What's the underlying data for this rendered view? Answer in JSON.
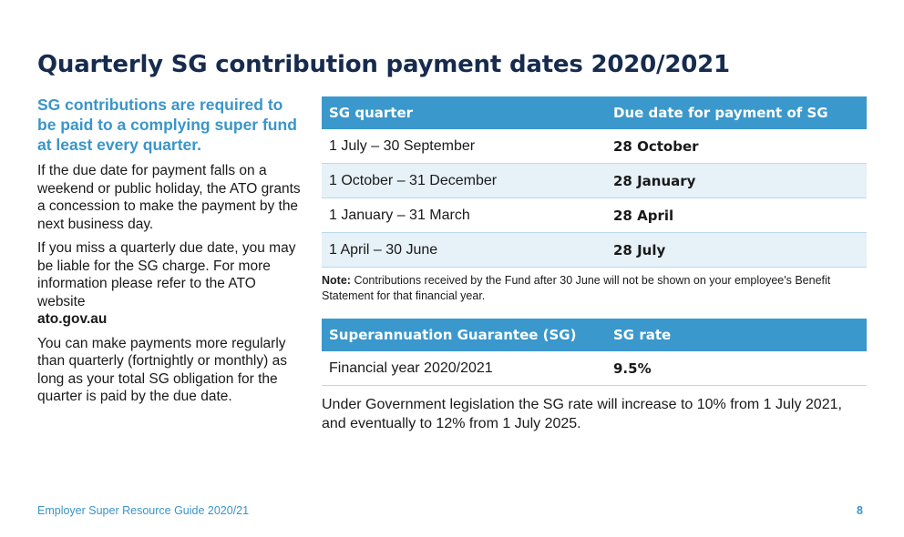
{
  "title": "Quarterly SG contribution payment dates 2020/2021",
  "left": {
    "lead": "SG contributions are required to be paid to a complying super fund at least every quarter.",
    "para1": "If the due date for payment falls on a weekend or public holiday, the ATO grants a concession to make the payment by the next business day.",
    "para2": "If you miss a quarterly due date, you may be liable for the SG charge. For more information please refer to the ATO website",
    "para2_link": "ato.gov.au",
    "para3": "You can make payments more regularly than quarterly (fortnightly or monthly) as long as your total SG obligation for the quarter is paid by the due date."
  },
  "quarter_table": {
    "headers": [
      "SG quarter",
      "Due date for payment of SG"
    ],
    "rows": [
      [
        "1 July – 30 September",
        "28 October"
      ],
      [
        "1 October – 31 December",
        "28 January"
      ],
      [
        "1 January – 31 March",
        "28 April"
      ],
      [
        "1 April – 30 June",
        "28 July"
      ]
    ]
  },
  "note": {
    "label": "Note:",
    "text": "Contributions received by the Fund after 30 June will not be shown on your employee's Benefit Statement for that financial year."
  },
  "rate_table": {
    "headers": [
      "Superannuation Guarantee (SG)",
      "SG rate"
    ],
    "rows": [
      [
        "Financial year 2020/2021",
        "9.5%"
      ]
    ]
  },
  "legislation": "Under Government legislation the SG rate will increase to 10% from 1 July 2021, and eventually to 12% from 1 July 2025.",
  "footer": {
    "guide": "Employer Super Resource Guide 2020/21",
    "page": "8"
  },
  "colors": {
    "title": "#162b4e",
    "accent": "#3a95c8",
    "header_bg": "#3a98cc",
    "row_shade": "#e6f1f8"
  }
}
